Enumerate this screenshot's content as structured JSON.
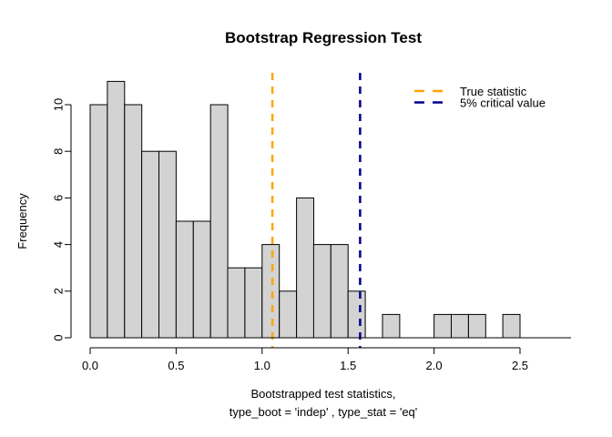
{
  "figure": {
    "background": "#FFFFFF",
    "title": "Bootstrap Regression Test"
  },
  "chart_data": {
    "type": "bar",
    "subtype": "histogram",
    "title": "Bootstrap Regression Test",
    "xlabel_line1": "Bootstrapped test statistics,",
    "xlabel_line2": "type_boot = 'indep' , type_stat = 'eq'",
    "ylabel": "Frequency",
    "bin_start": 0.0,
    "bin_width": 0.1,
    "counts": [
      10,
      11,
      10,
      8,
      8,
      5,
      5,
      10,
      3,
      3,
      4,
      2,
      6,
      4,
      4,
      2,
      0,
      1,
      0,
      0,
      1,
      1,
      1,
      0,
      1
    ],
    "total_observations": 100,
    "x_ticks": [
      0.0,
      0.5,
      1.0,
      1.5,
      2.0,
      2.5
    ],
    "x_tick_labels": [
      "0.0",
      "0.5",
      "1.0",
      "1.5",
      "2.0",
      "2.5"
    ],
    "y_ticks": [
      0,
      2,
      4,
      6,
      8,
      10
    ],
    "y_tick_labels": [
      "0",
      "2",
      "4",
      "6",
      "8",
      "10"
    ],
    "xlim": [
      -0.1,
      2.8
    ],
    "ylim": [
      0,
      11
    ],
    "grid": false,
    "bar_fill": "#D3D3D3",
    "bar_stroke": "#000000",
    "vlines": [
      {
        "name": "true-statistic",
        "x": 1.06,
        "color": "#FFA500",
        "style": "dashed",
        "label": "True statistic"
      },
      {
        "name": "critical-value",
        "x": 1.57,
        "color": "#00008B",
        "style": "dashed",
        "label": "5% critical value"
      }
    ],
    "legend": {
      "position": "top-right",
      "entries": [
        {
          "label": "True statistic",
          "color": "#FFA500"
        },
        {
          "label": "5% critical value",
          "color": "#00008B"
        }
      ]
    }
  }
}
